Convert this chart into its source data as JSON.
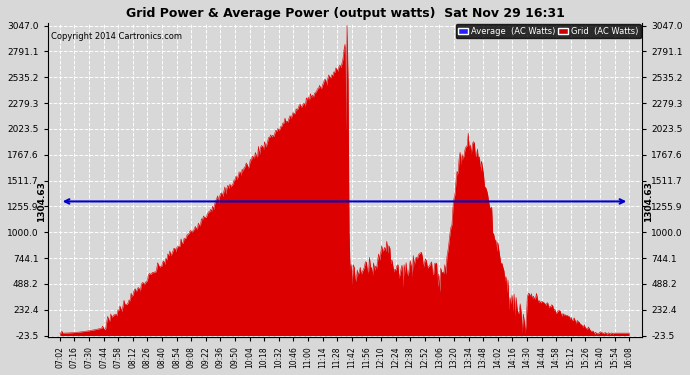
{
  "title": "Grid Power & Average Power (output watts)  Sat Nov 29 16:31",
  "copyright": "Copyright 2014 Cartronics.com",
  "average_value": 1304.63,
  "y_min": -23.5,
  "y_max": 3047.0,
  "yticks": [
    -23.5,
    232.4,
    488.2,
    744.1,
    1000.0,
    1255.9,
    1511.7,
    1767.6,
    2023.5,
    2279.3,
    2535.2,
    2791.1,
    3047.0
  ],
  "fill_color": "#dd0000",
  "avg_line_color": "#0000cc",
  "background_color": "#d8d8d8",
  "grid_color": "#ffffff",
  "legend_avg_color": "#2222ff",
  "legend_grid_color": "#cc0000",
  "xtick_labels": [
    "07:02",
    "07:16",
    "07:30",
    "07:44",
    "07:58",
    "08:12",
    "08:26",
    "08:40",
    "08:54",
    "09:08",
    "09:22",
    "09:36",
    "09:50",
    "10:04",
    "10:18",
    "10:32",
    "10:46",
    "11:00",
    "11:14",
    "11:28",
    "11:42",
    "11:56",
    "12:10",
    "12:24",
    "12:38",
    "12:52",
    "13:06",
    "13:20",
    "13:34",
    "13:48",
    "14:02",
    "14:16",
    "14:30",
    "14:44",
    "14:58",
    "15:12",
    "15:26",
    "15:40",
    "15:54",
    "16:08"
  ],
  "num_points": 560
}
